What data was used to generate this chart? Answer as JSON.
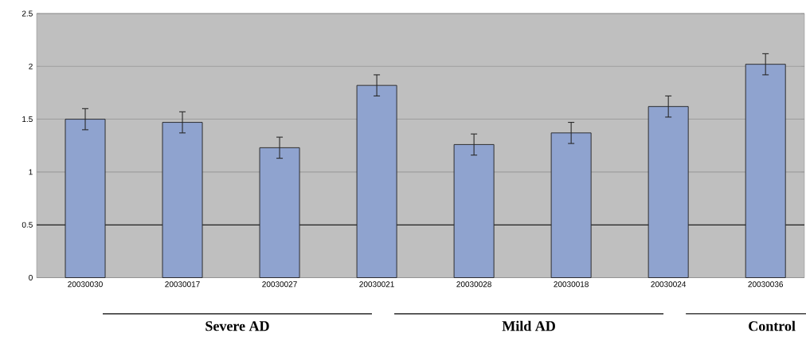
{
  "chart_data": {
    "type": "bar",
    "categories": [
      "20030030",
      "20030017",
      "20030027",
      "20030021",
      "20030028",
      "20030018",
      "20030024",
      "20030036"
    ],
    "values": [
      1.5,
      1.47,
      1.23,
      1.82,
      1.26,
      1.37,
      1.62,
      2.02
    ],
    "errors": [
      0.1,
      0.1,
      0.1,
      0.1,
      0.1,
      0.1,
      0.1,
      0.1
    ],
    "color": "#8fa3cf",
    "ylim": [
      0,
      2.5
    ],
    "yticks": [
      0,
      0.5,
      1,
      1.5,
      2,
      2.5
    ],
    "grid": "y",
    "ref_lines": [
      {
        "axis": "y",
        "value": 0.5,
        "color": "#000000"
      }
    ],
    "annotations": [
      "Severe AD",
      "Mild AD",
      "Control"
    ]
  }
}
